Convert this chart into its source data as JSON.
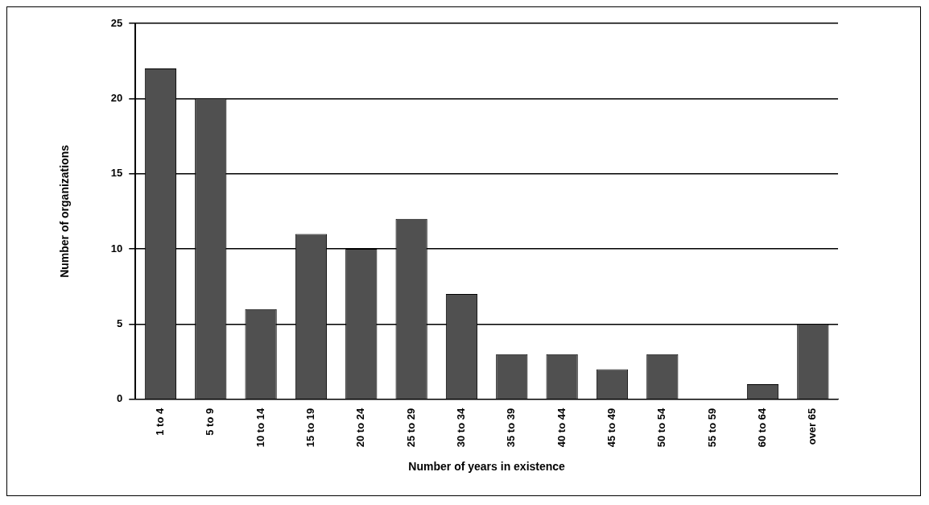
{
  "chart_data": {
    "type": "bar",
    "xlabel": "Number of years in existence",
    "ylabel": "Number of organizations",
    "categories": [
      "1 to 4",
      "5 to 9",
      "10 to 14",
      "15 to 19",
      "20 to 24",
      "25 to 29",
      "30 to 34",
      "35 to 39",
      "40 to 44",
      "45 to 49",
      "50 to 54",
      "55 to 59",
      "60 to 64",
      "over 65"
    ],
    "values": [
      22,
      20,
      6,
      11,
      10,
      12,
      7,
      3,
      3,
      2,
      3,
      0,
      1,
      5
    ],
    "color": "#505050",
    "ylim": [
      0,
      25
    ],
    "yticks": [
      0,
      5,
      10,
      15,
      20,
      25
    ],
    "grid": "y",
    "legend": false
  }
}
